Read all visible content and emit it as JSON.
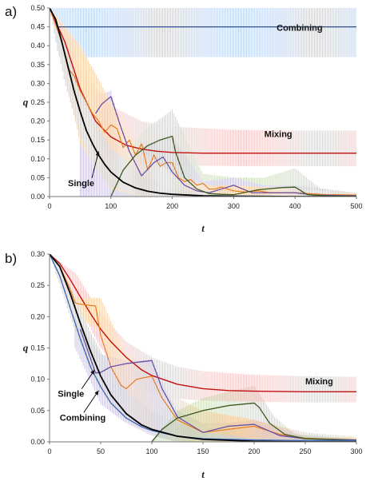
{
  "chart_data": [
    {
      "type": "line",
      "panel_label": "a)",
      "xlabel": "t",
      "ylabel": "q",
      "xlim": [
        0,
        500
      ],
      "ylim": [
        0,
        0.5
      ],
      "xticks": [
        0,
        100,
        200,
        300,
        400,
        500
      ],
      "yticks": [
        0,
        0.05,
        0.1,
        0.15,
        0.2,
        0.25,
        0.3,
        0.35,
        0.4,
        0.45,
        0.5
      ],
      "ytick_labels": [
        "0.00",
        "0.05",
        "0.10",
        "0.15",
        "0.20",
        "0.25",
        "0.30",
        "0.35",
        "0.40",
        "0.45",
        "0.50"
      ],
      "xtick_labels": [
        "0",
        "100",
        "200",
        "300",
        "400",
        "500"
      ],
      "grid": false,
      "annotations": [
        {
          "text": "Combining",
          "x": 370,
          "y": 0.44
        },
        {
          "text": "Mixing",
          "x": 350,
          "y": 0.158
        },
        {
          "text": "Single",
          "x": 30,
          "y": 0.028,
          "arrow_to": [
            80,
            0.12
          ]
        }
      ],
      "series": [
        {
          "color": "#b7cff0",
          "band": true,
          "x": [
            0,
            15,
            500
          ],
          "upper": [
            0.5,
            0.5,
            0.5
          ],
          "lower": [
            0.5,
            0.37,
            0.37
          ]
        },
        {
          "color": "#f2c4c4",
          "band": true,
          "x": [
            0,
            25,
            50,
            100,
            150,
            200,
            300,
            400,
            500
          ],
          "upper": [
            0.5,
            0.45,
            0.34,
            0.24,
            0.2,
            0.185,
            0.177,
            0.175,
            0.175
          ],
          "lower": [
            0.5,
            0.39,
            0.23,
            0.1,
            0.085,
            0.082,
            0.081,
            0.081,
            0.08
          ]
        },
        {
          "color": "#c9d9b8",
          "band": true,
          "x": [
            100,
            150,
            200,
            250,
            300,
            350,
            400,
            450,
            500
          ],
          "upper": [
            0.03,
            0.17,
            0.23,
            0.06,
            0.05,
            0.05,
            0.075,
            0.01,
            0.01
          ],
          "lower": [
            0,
            0,
            0,
            0,
            0,
            0,
            0,
            0,
            0
          ]
        },
        {
          "color": "#c6bedf",
          "band": true,
          "x": [
            50,
            80,
            100,
            130,
            160,
            200,
            250,
            300,
            350,
            400,
            500
          ],
          "upper": [
            0.28,
            0.27,
            0.28,
            0.1,
            0.14,
            0.16,
            0.04,
            0.05,
            0.03,
            0.03,
            0.01
          ],
          "lower": [
            0,
            0,
            0,
            0,
            0,
            0,
            0,
            0,
            0,
            0,
            0
          ]
        },
        {
          "color": "#f5cfa6",
          "band": true,
          "x": [
            0,
            50,
            100,
            150,
            200,
            250,
            300,
            400,
            500
          ],
          "upper": [
            0.5,
            0.4,
            0.25,
            0.12,
            0.06,
            0.03,
            0.03,
            0.02,
            0.01
          ],
          "lower": [
            0.5,
            0.14,
            0.02,
            0,
            0,
            0,
            0,
            0,
            0
          ]
        },
        {
          "color": "#cfcfcf",
          "band": true,
          "x": [
            0,
            25,
            50,
            75,
            100,
            150,
            200,
            300,
            500
          ],
          "upper": [
            0.5,
            0.4,
            0.29,
            0.2,
            0.13,
            0.06,
            0.02,
            0.005,
            0.002
          ],
          "lower": [
            0.5,
            0.3,
            0.16,
            0.07,
            0.025,
            0.004,
            0,
            0,
            0
          ]
        },
        {
          "color": "#2e4f8f",
          "x": [
            0,
            12,
            500
          ],
          "y": [
            0.5,
            0.45,
            0.45
          ],
          "width": 1.3
        },
        {
          "color": "#c01010",
          "x": [
            0,
            25,
            50,
            75,
            100,
            125,
            150,
            175,
            200,
            250,
            300,
            400,
            500
          ],
          "y": [
            0.5,
            0.41,
            0.285,
            0.2,
            0.158,
            0.136,
            0.126,
            0.12,
            0.117,
            0.115,
            0.115,
            0.115,
            0.115
          ],
          "width": 1.4
        },
        {
          "color": "#e87a1e",
          "x": [
            0,
            20,
            30,
            40,
            50,
            60,
            70,
            80,
            90,
            100,
            110,
            120,
            130,
            140,
            150,
            160,
            170,
            180,
            190,
            200,
            210,
            220,
            230,
            240,
            250,
            260,
            270,
            280,
            290,
            300,
            320,
            340,
            360,
            380,
            400,
            450,
            500
          ],
          "y": [
            0.5,
            0.41,
            0.34,
            0.32,
            0.28,
            0.25,
            0.22,
            0.2,
            0.17,
            0.19,
            0.18,
            0.13,
            0.15,
            0.11,
            0.14,
            0.07,
            0.11,
            0.08,
            0.09,
            0.09,
            0.05,
            0.04,
            0.045,
            0.03,
            0.035,
            0.02,
            0.02,
            0.025,
            0.02,
            0.015,
            0.012,
            0.015,
            0.01,
            0.01,
            0.01,
            0.005,
            0.004
          ],
          "width": 1.2
        },
        {
          "color": "#6a4fa8",
          "x": [
            75,
            85,
            100,
            115,
            130,
            150,
            170,
            185,
            200,
            220,
            240,
            260,
            280,
            300,
            330,
            360,
            400,
            430,
            460,
            500
          ],
          "y": [
            0.22,
            0.245,
            0.265,
            0.19,
            0.12,
            0.055,
            0.09,
            0.105,
            0.065,
            0.03,
            0.015,
            0.01,
            0.02,
            0.03,
            0.01,
            0.01,
            0.01,
            0.004,
            0.003,
            0.002
          ],
          "width": 1.3
        },
        {
          "color": "#3c5a1e",
          "x": [
            100,
            120,
            140,
            160,
            180,
            200,
            205,
            220,
            240,
            260,
            280,
            300,
            340,
            380,
            400,
            420,
            450,
            500
          ],
          "y": [
            0,
            0.07,
            0.11,
            0.135,
            0.15,
            0.16,
            0.12,
            0.05,
            0.02,
            0.008,
            0.006,
            0.005,
            0.018,
            0.024,
            0.025,
            0.005,
            0.002,
            0.001
          ],
          "width": 1.3
        },
        {
          "color": "#000000",
          "x": [
            0,
            10,
            20,
            30,
            40,
            50,
            60,
            70,
            80,
            90,
            100,
            120,
            140,
            160,
            180,
            200,
            250,
            300,
            400,
            500
          ],
          "y": [
            0.5,
            0.47,
            0.41,
            0.345,
            0.28,
            0.225,
            0.175,
            0.14,
            0.11,
            0.085,
            0.065,
            0.038,
            0.023,
            0.014,
            0.009,
            0.006,
            0.002,
            0.001,
            0,
            0
          ],
          "width": 1.8
        }
      ]
    },
    {
      "type": "line",
      "panel_label": "b)",
      "xlabel": "t",
      "ylabel": "q",
      "xlim": [
        0,
        300
      ],
      "ylim": [
        0,
        0.3
      ],
      "xticks": [
        0,
        50,
        100,
        150,
        200,
        250,
        300
      ],
      "yticks": [
        0,
        0.05,
        0.1,
        0.15,
        0.2,
        0.25,
        0.3
      ],
      "ytick_labels": [
        "0.00",
        "0.05",
        "0.10",
        "0.15",
        "0.20",
        "0.25",
        "0.30"
      ],
      "xtick_labels": [
        "0",
        "50",
        "100",
        "150",
        "200",
        "250",
        "300"
      ],
      "grid": false,
      "annotations": [
        {
          "text": "Mixing",
          "x": 250,
          "y": 0.092
        },
        {
          "text": "Single",
          "x": 8,
          "y": 0.072,
          "arrow_to": [
            44,
            0.115
          ]
        },
        {
          "text": "Combining",
          "x": 10,
          "y": 0.034,
          "arrow_to": [
            48,
            0.082
          ]
        }
      ],
      "series": [
        {
          "color": "#f2c4c4",
          "band": true,
          "x": [
            0,
            25,
            50,
            75,
            100,
            125,
            150,
            200,
            250,
            300
          ],
          "upper": [
            0.3,
            0.27,
            0.205,
            0.16,
            0.135,
            0.12,
            0.113,
            0.107,
            0.105,
            0.104
          ],
          "lower": [
            0.3,
            0.23,
            0.15,
            0.1,
            0.078,
            0.069,
            0.066,
            0.064,
            0.063,
            0.063
          ]
        },
        {
          "color": "#c9d9b8",
          "band": true,
          "x": [
            100,
            125,
            150,
            175,
            200,
            220,
            240,
            300
          ],
          "upper": [
            0.003,
            0.05,
            0.07,
            0.08,
            0.09,
            0.04,
            0.012,
            0.005
          ],
          "lower": [
            0,
            0,
            0,
            0,
            0,
            0,
            0,
            0
          ]
        },
        {
          "color": "#c6bedf",
          "band": true,
          "x": [
            25,
            50,
            75,
            100,
            125,
            150,
            175,
            200,
            250,
            300
          ],
          "upper": [
            0.2,
            0.14,
            0.13,
            0.13,
            0.05,
            0.03,
            0.03,
            0.035,
            0.01,
            0.005
          ],
          "lower": [
            0.15,
            0.06,
            0.03,
            0.01,
            0,
            0,
            0,
            0,
            0,
            0
          ]
        },
        {
          "color": "#f5cfa6",
          "band": true,
          "x": [
            0,
            25,
            50,
            75,
            100,
            125,
            150,
            200,
            250,
            300
          ],
          "upper": [
            0.3,
            0.23,
            0.23,
            0.14,
            0.12,
            0.07,
            0.05,
            0.035,
            0.015,
            0.008
          ],
          "lower": [
            0.3,
            0.2,
            0.18,
            0.04,
            0.02,
            0,
            0,
            0,
            0,
            0
          ]
        },
        {
          "color": "#cfcfcf",
          "band": true,
          "x": [
            0,
            20,
            40,
            60,
            80,
            100,
            125,
            150,
            200,
            300
          ],
          "upper": [
            0.3,
            0.25,
            0.175,
            0.115,
            0.075,
            0.05,
            0.03,
            0.015,
            0.005,
            0.002
          ],
          "lower": [
            0.3,
            0.2,
            0.11,
            0.055,
            0.028,
            0.015,
            0.005,
            0.002,
            0,
            0
          ]
        },
        {
          "color": "#c01010",
          "x": [
            0,
            10,
            20,
            30,
            40,
            50,
            60,
            75,
            90,
            100,
            125,
            150,
            175,
            200,
            250,
            300
          ],
          "y": [
            0.3,
            0.285,
            0.26,
            0.232,
            0.205,
            0.18,
            0.16,
            0.135,
            0.115,
            0.106,
            0.092,
            0.085,
            0.082,
            0.081,
            0.08,
            0.08
          ],
          "width": 1.4
        },
        {
          "color": "#e87a1e",
          "x": [
            0,
            10,
            20,
            25,
            30,
            45,
            50,
            60,
            70,
            75,
            85,
            100,
            110,
            125,
            150,
            175,
            200,
            225,
            250,
            300
          ],
          "y": [
            0.3,
            0.28,
            0.245,
            0.222,
            0.22,
            0.217,
            0.17,
            0.12,
            0.09,
            0.085,
            0.1,
            0.105,
            0.07,
            0.035,
            0.015,
            0.02,
            0.025,
            0.012,
            0.006,
            0.003
          ],
          "width": 1.2
        },
        {
          "color": "#6a4fa8",
          "x": [
            30,
            45,
            50,
            60,
            75,
            100,
            110,
            125,
            150,
            175,
            200,
            225,
            250,
            300
          ],
          "y": [
            0.18,
            0.11,
            0.111,
            0.12,
            0.125,
            0.13,
            0.085,
            0.04,
            0.015,
            0.025,
            0.028,
            0.01,
            0.005,
            0.003
          ],
          "width": 1.3
        },
        {
          "color": "#3c5a1e",
          "x": [
            100,
            110,
            125,
            150,
            175,
            200,
            205,
            215,
            230,
            250,
            300
          ],
          "y": [
            0,
            0.02,
            0.038,
            0.05,
            0.058,
            0.062,
            0.055,
            0.03,
            0.012,
            0.005,
            0.002
          ],
          "width": 1.3
        },
        {
          "color": "#3b66b8",
          "x": [
            0,
            10,
            20,
            30,
            40,
            50,
            60,
            75,
            90,
            100,
            125,
            150,
            200,
            250,
            300
          ],
          "y": [
            0.3,
            0.265,
            0.215,
            0.165,
            0.12,
            0.088,
            0.062,
            0.038,
            0.024,
            0.018,
            0.009,
            0.005,
            0.003,
            0.002,
            0.002
          ],
          "width": 1.3
        },
        {
          "color": "#000000",
          "x": [
            0,
            10,
            20,
            30,
            40,
            50,
            60,
            75,
            90,
            100,
            125,
            150,
            200,
            250,
            300
          ],
          "y": [
            0.3,
            0.28,
            0.238,
            0.19,
            0.145,
            0.105,
            0.075,
            0.045,
            0.027,
            0.02,
            0.009,
            0.004,
            0.001,
            0,
            0
          ],
          "width": 1.8
        }
      ]
    }
  ]
}
